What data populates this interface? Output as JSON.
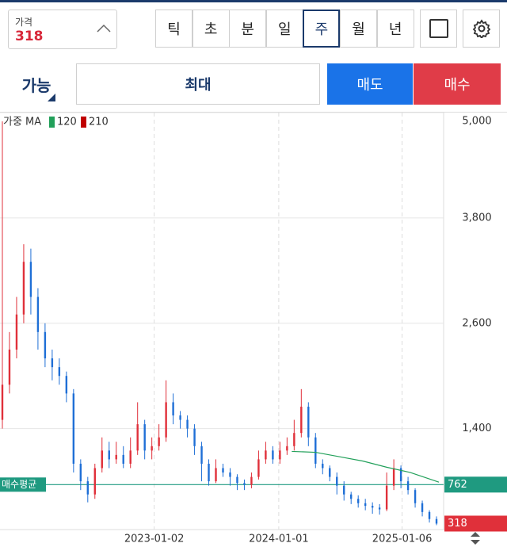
{
  "toolbar": {
    "price_label": "가격",
    "price": "318",
    "timeframes": [
      "틱",
      "초",
      "분",
      "일",
      "주",
      "월",
      "년"
    ],
    "selected_timeframe": 4
  },
  "order_bar": {
    "mode": "가능",
    "quantity": "최대",
    "sell": "매도",
    "buy": "매수"
  },
  "chart_data": {
    "type": "candlestick",
    "legend_title": "가중 MA",
    "xlim": [
      0,
      187
    ],
    "ylim": [
      250,
      5000
    ],
    "yticks": [
      {
        "value": 1400,
        "label": "1,400"
      },
      {
        "value": 2600,
        "label": "2,600"
      },
      {
        "value": 3800,
        "label": "3,800"
      },
      {
        "value": 5000,
        "label": "5,000"
      }
    ],
    "xticks": [
      {
        "value": 65,
        "label": "2023-01-02"
      },
      {
        "value": 117.5,
        "label": "2024-01-01"
      },
      {
        "value": 169.5,
        "label": "2025-01-06"
      }
    ],
    "grid": true,
    "up_color": "#e0303a",
    "down_color": "#1f6fd6",
    "x": [
      1,
      4,
      7,
      10,
      13,
      16,
      19,
      22,
      25,
      28,
      31,
      34,
      37,
      40,
      43,
      46,
      49,
      52,
      55,
      58,
      61,
      64,
      67,
      70,
      73,
      76,
      79,
      82,
      85,
      88,
      91,
      94,
      97,
      100,
      103,
      106,
      109,
      112,
      115,
      118,
      121,
      124,
      127,
      130,
      133,
      136,
      139,
      142,
      145,
      148,
      151,
      154,
      157,
      160,
      163,
      166,
      169,
      172,
      175,
      178,
      181,
      184
    ],
    "open": [
      1500,
      1900,
      2300,
      2700,
      3300,
      2900,
      2500,
      2200,
      2100,
      2000,
      1800,
      1000,
      800,
      650,
      950,
      1150,
      1050,
      1100,
      1000,
      1150,
      1450,
      1150,
      1200,
      1300,
      1700,
      1550,
      1500,
      1400,
      1200,
      1000,
      800,
      950,
      900,
      850,
      780,
      760,
      850,
      1050,
      1150,
      1050,
      1150,
      1200,
      1350,
      1650,
      1300,
      1000,
      950,
      850,
      750,
      650,
      600,
      550,
      520,
      500,
      480,
      750,
      950,
      800,
      700,
      550,
      450,
      370
    ],
    "high": [
      4900,
      2500,
      2900,
      3500,
      3450,
      3000,
      2600,
      2300,
      2200,
      2050,
      1850,
      1050,
      850,
      1000,
      1300,
      1250,
      1250,
      1200,
      1300,
      1700,
      1500,
      1300,
      1450,
      1950,
      1800,
      1600,
      1550,
      1450,
      1250,
      1050,
      1050,
      1000,
      950,
      880,
      820,
      900,
      1150,
      1250,
      1200,
      1250,
      1300,
      1500,
      1850,
      1700,
      1350,
      1050,
      980,
      900,
      800,
      680,
      640,
      600,
      560,
      540,
      900,
      1050,
      980,
      850,
      720,
      580,
      470,
      400
    ],
    "low": [
      1400,
      1800,
      2200,
      2600,
      2700,
      2300,
      2100,
      1950,
      1900,
      1700,
      900,
      700,
      560,
      600,
      900,
      950,
      1000,
      950,
      950,
      1100,
      1050,
      1050,
      1150,
      1250,
      1450,
      1400,
      1300,
      1100,
      800,
      750,
      780,
      850,
      750,
      700,
      700,
      720,
      820,
      1000,
      1000,
      1000,
      1100,
      1150,
      1300,
      1200,
      950,
      880,
      800,
      650,
      580,
      540,
      500,
      470,
      430,
      420,
      460,
      700,
      720,
      650,
      500,
      400,
      330,
      300
    ],
    "close": [
      1900,
      2300,
      2700,
      3300,
      2900,
      2500,
      2200,
      2100,
      2000,
      1800,
      1000,
      800,
      650,
      950,
      1150,
      1050,
      1100,
      1000,
      1150,
      1450,
      1150,
      1200,
      1300,
      1700,
      1550,
      1500,
      1400,
      1200,
      1000,
      800,
      950,
      900,
      850,
      780,
      760,
      850,
      1050,
      1150,
      1050,
      1150,
      1200,
      1350,
      1650,
      1300,
      1000,
      950,
      850,
      750,
      650,
      600,
      550,
      520,
      500,
      480,
      750,
      950,
      800,
      700,
      550,
      450,
      370,
      318
    ],
    "series": [
      {
        "name": "120",
        "color": "#22a05a",
        "x": [
          123,
          133,
          143,
          153,
          163,
          173,
          185
        ],
        "values": [
          1140,
          1130,
          1080,
          1030,
          960,
          900,
          790
        ]
      },
      {
        "name": "210",
        "color": "#c00000"
      }
    ],
    "avg_line": {
      "label": "매수평균",
      "value": 762,
      "color": "#1f9a80"
    },
    "last_price": 318
  }
}
